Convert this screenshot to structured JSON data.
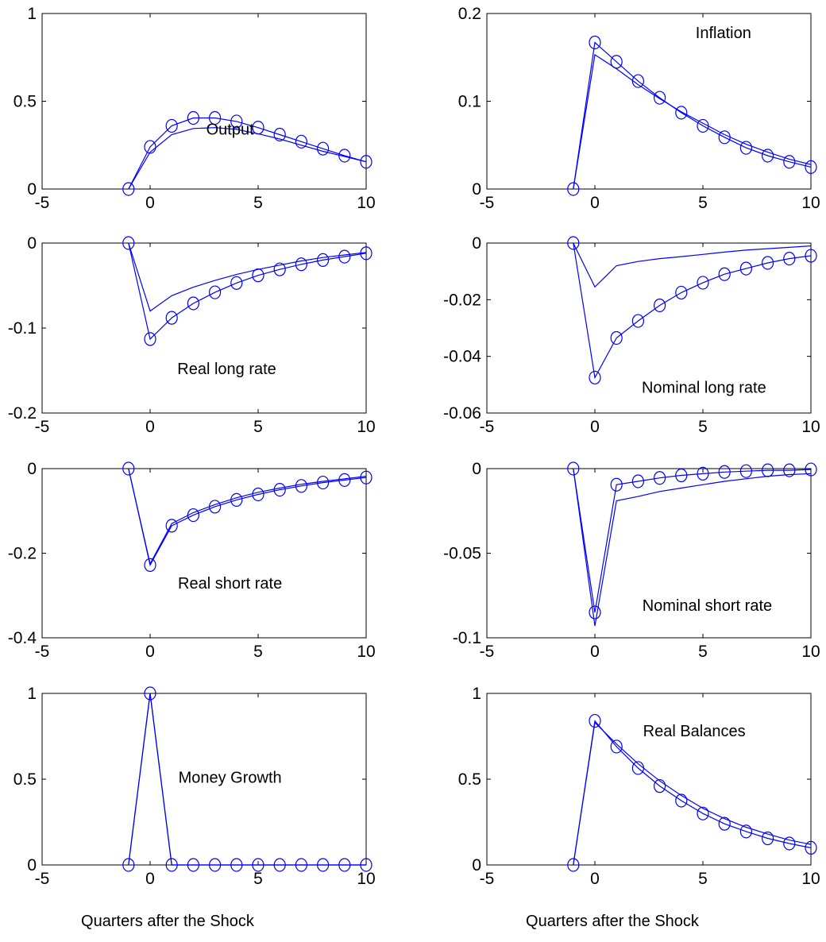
{
  "figure": {
    "xlabels": [
      "Quarters after the Shock",
      "Quarters after the Shock"
    ]
  },
  "chart_data": [
    {
      "type": "line",
      "annotation": "Output",
      "x": [
        -1,
        0,
        1,
        2,
        3,
        4,
        5,
        6,
        7,
        8,
        9,
        10
      ],
      "xlim": [
        -5,
        10
      ],
      "ylim": [
        0,
        1
      ],
      "xticks": [
        "-5",
        "0",
        "5",
        "10"
      ],
      "yticks": [
        "0",
        "0.5",
        "1"
      ],
      "series": [
        {
          "marker": "circle",
          "values": [
            0,
            0.24,
            0.36,
            0.405,
            0.405,
            0.385,
            0.35,
            0.31,
            0.27,
            0.23,
            0.19,
            0.155
          ]
        },
        {
          "marker": "none",
          "values": [
            0,
            0.21,
            0.31,
            0.345,
            0.35,
            0.34,
            0.315,
            0.285,
            0.25,
            0.215,
            0.185,
            0.155
          ]
        }
      ]
    },
    {
      "type": "line",
      "annotation": "Inflation",
      "x": [
        -1,
        0,
        1,
        2,
        3,
        4,
        5,
        6,
        7,
        8,
        9,
        10
      ],
      "xlim": [
        -5,
        10
      ],
      "ylim": [
        0,
        0.2
      ],
      "xticks": [
        "-5",
        "0",
        "5",
        "10"
      ],
      "yticks": [
        "0",
        "0.1",
        "0.2"
      ],
      "series": [
        {
          "marker": "circle",
          "values": [
            0,
            0.167,
            0.145,
            0.123,
            0.104,
            0.087,
            0.072,
            0.059,
            0.047,
            0.038,
            0.031,
            0.025
          ]
        },
        {
          "marker": "none",
          "values": [
            0,
            0.153,
            0.137,
            0.119,
            0.103,
            0.088,
            0.075,
            0.062,
            0.051,
            0.042,
            0.034,
            0.028
          ]
        }
      ]
    },
    {
      "type": "line",
      "annotation": "Real long rate",
      "x": [
        -1,
        0,
        1,
        2,
        3,
        4,
        5,
        6,
        7,
        8,
        9,
        10
      ],
      "xlim": [
        -5,
        10
      ],
      "ylim": [
        -0.2,
        0
      ],
      "xticks": [
        "-5",
        "0",
        "5",
        "10"
      ],
      "yticks": [
        "0",
        "-0.1",
        "-0.2"
      ],
      "series": [
        {
          "marker": "circle",
          "values": [
            0,
            -0.113,
            -0.088,
            -0.071,
            -0.058,
            -0.047,
            -0.038,
            -0.031,
            -0.025,
            -0.02,
            -0.016,
            -0.012
          ]
        },
        {
          "marker": "none",
          "values": [
            0,
            -0.08,
            -0.062,
            -0.052,
            -0.044,
            -0.037,
            -0.031,
            -0.026,
            -0.021,
            -0.017,
            -0.014,
            -0.011
          ]
        }
      ]
    },
    {
      "type": "line",
      "annotation": "Nominal long rate",
      "x": [
        -1,
        0,
        1,
        2,
        3,
        4,
        5,
        6,
        7,
        8,
        9,
        10
      ],
      "xlim": [
        -5,
        10
      ],
      "ylim": [
        -0.06,
        0
      ],
      "xticks": [
        "-5",
        "0",
        "5",
        "10"
      ],
      "yticks": [
        "0",
        "-0.02",
        "-0.04",
        "-0.06"
      ],
      "series": [
        {
          "marker": "circle",
          "values": [
            0,
            -0.0475,
            -0.0335,
            -0.0275,
            -0.022,
            -0.0175,
            -0.014,
            -0.011,
            -0.009,
            -0.007,
            -0.0055,
            -0.0045
          ]
        },
        {
          "marker": "none",
          "values": [
            0,
            -0.0155,
            -0.008,
            -0.0065,
            -0.0055,
            -0.0048,
            -0.004,
            -0.0032,
            -0.0025,
            -0.002,
            -0.0015,
            -0.001
          ]
        }
      ]
    },
    {
      "type": "line",
      "annotation": "Real short rate",
      "x": [
        -1,
        0,
        1,
        2,
        3,
        4,
        5,
        6,
        7,
        8,
        9,
        10
      ],
      "xlim": [
        -5,
        10
      ],
      "ylim": [
        -0.4,
        0
      ],
      "xticks": [
        "-5",
        "0",
        "5",
        "10"
      ],
      "yticks": [
        "0",
        "-0.2",
        "-0.4"
      ],
      "series": [
        {
          "marker": "circle",
          "values": [
            0,
            -0.228,
            -0.135,
            -0.11,
            -0.09,
            -0.074,
            -0.061,
            -0.05,
            -0.041,
            -0.033,
            -0.027,
            -0.021
          ]
        },
        {
          "marker": "none",
          "values": [
            0,
            -0.225,
            -0.13,
            -0.104,
            -0.085,
            -0.069,
            -0.056,
            -0.046,
            -0.037,
            -0.03,
            -0.024,
            -0.018
          ]
        }
      ]
    },
    {
      "type": "line",
      "annotation": "Nominal short rate",
      "x": [
        -1,
        0,
        1,
        2,
        3,
        4,
        5,
        6,
        7,
        8,
        9,
        10
      ],
      "xlim": [
        -5,
        10
      ],
      "ylim": [
        -0.1,
        0
      ],
      "xticks": [
        "-5",
        "0",
        "5",
        "10"
      ],
      "yticks": [
        "0",
        "-0.05",
        "-0.1"
      ],
      "series": [
        {
          "marker": "circle",
          "values": [
            0,
            -0.085,
            -0.0095,
            -0.0075,
            -0.0055,
            -0.004,
            -0.003,
            -0.002,
            -0.0015,
            -0.001,
            -0.001,
            -0.0005
          ]
        },
        {
          "marker": "none",
          "values": [
            0,
            -0.093,
            -0.019,
            -0.0165,
            -0.0135,
            -0.0115,
            -0.0095,
            -0.0075,
            -0.006,
            -0.0045,
            -0.0035,
            -0.003
          ]
        }
      ]
    },
    {
      "type": "line",
      "annotation": "Money Growth",
      "x": [
        -1,
        0,
        1,
        2,
        3,
        4,
        5,
        6,
        7,
        8,
        9,
        10
      ],
      "xlim": [
        -5,
        10
      ],
      "ylim": [
        0,
        1
      ],
      "xticks": [
        "-5",
        "0",
        "5",
        "10"
      ],
      "yticks": [
        "0",
        "0.5",
        "1"
      ],
      "series": [
        {
          "marker": "circle",
          "values": [
            0,
            1,
            0,
            0,
            0,
            0,
            0,
            0,
            0,
            0,
            0,
            0
          ]
        },
        {
          "marker": "none",
          "values": [
            0,
            1,
            0,
            0,
            0,
            0,
            0,
            0,
            0,
            0,
            0,
            0
          ]
        }
      ]
    },
    {
      "type": "line",
      "annotation": "Real Balances",
      "x": [
        -1,
        0,
        1,
        2,
        3,
        4,
        5,
        6,
        7,
        8,
        9,
        10
      ],
      "xlim": [
        -5,
        10
      ],
      "ylim": [
        0,
        1
      ],
      "xticks": [
        "-5",
        "0",
        "5",
        "10"
      ],
      "yticks": [
        "0",
        "0.5",
        "1"
      ],
      "series": [
        {
          "marker": "circle",
          "values": [
            0,
            0.84,
            0.69,
            0.565,
            0.46,
            0.375,
            0.3,
            0.24,
            0.195,
            0.155,
            0.125,
            0.1
          ]
        },
        {
          "marker": "none",
          "values": [
            0,
            0.83,
            0.705,
            0.59,
            0.49,
            0.405,
            0.33,
            0.27,
            0.22,
            0.18,
            0.145,
            0.12
          ]
        }
      ]
    }
  ]
}
